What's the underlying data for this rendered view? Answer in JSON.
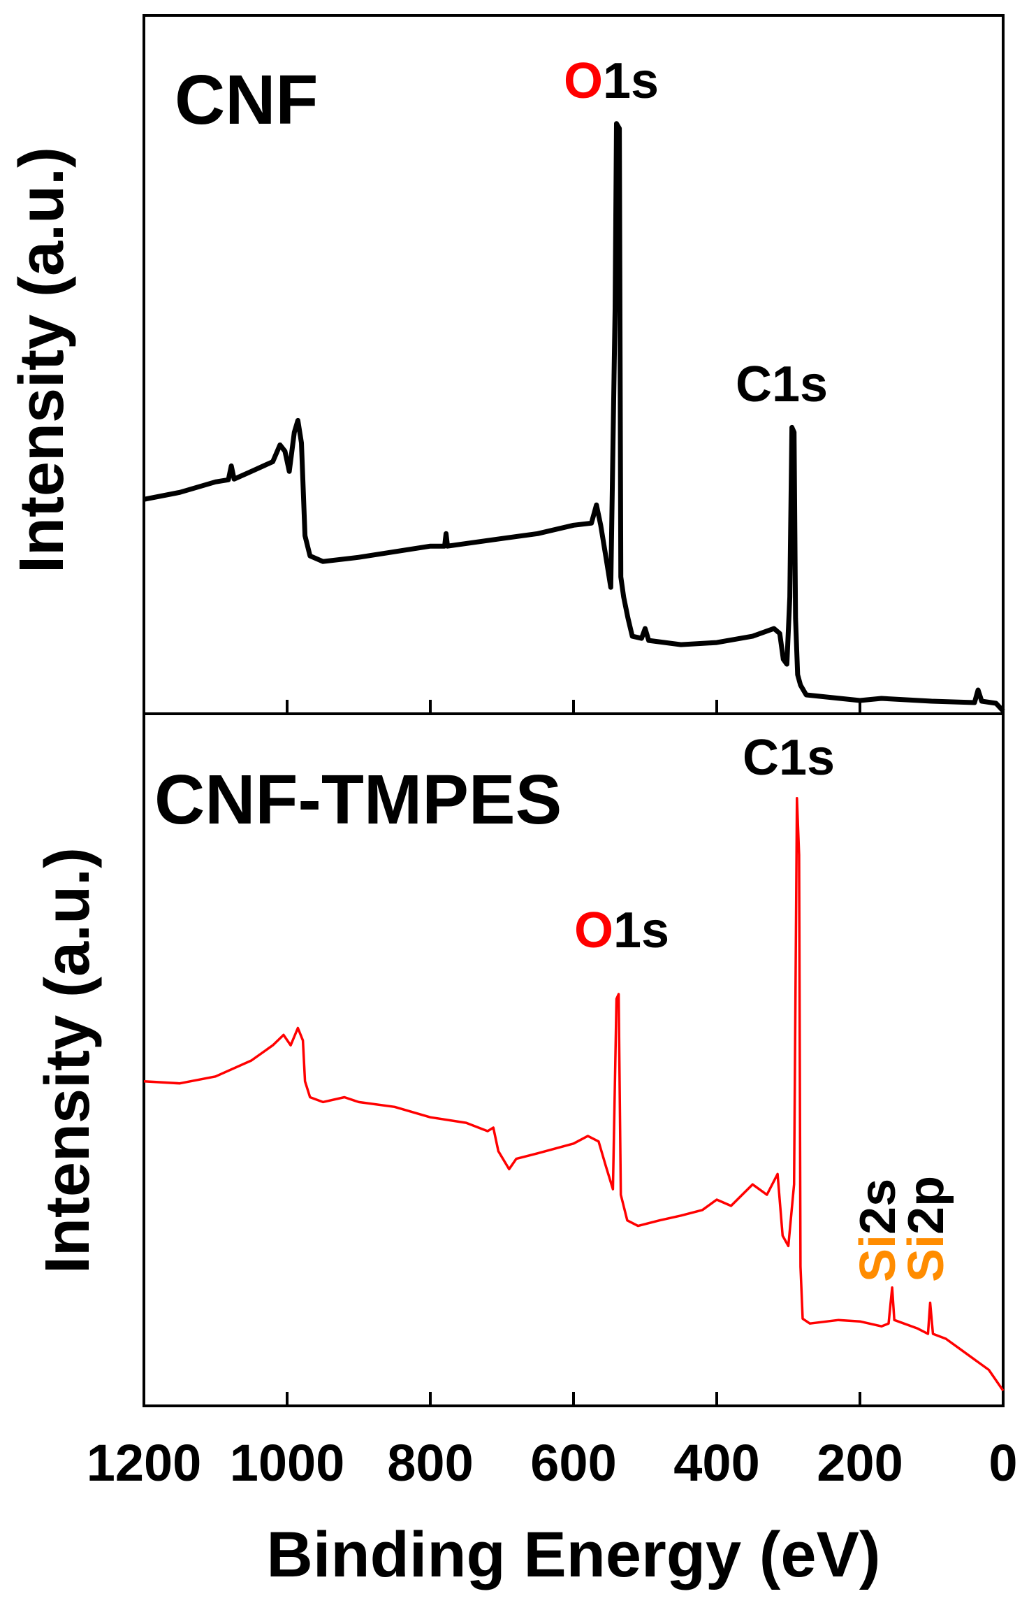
{
  "chart_data": [
    {
      "type": "line",
      "title": "CNF",
      "ylabel": "Intensity (a.u.)",
      "color": "#000000",
      "xlim": [
        1200,
        0
      ],
      "ylim": [
        0,
        100
      ],
      "xticks": [
        1200,
        1000,
        800,
        600,
        400,
        200,
        0
      ],
      "x": [
        1200,
        1150,
        1100,
        1082,
        1078,
        1074,
        1050,
        1020,
        1010,
        1003,
        997,
        990,
        985,
        980,
        975,
        968,
        950,
        900,
        850,
        800,
        780,
        778,
        776,
        700,
        650,
        600,
        575,
        568,
        562,
        555,
        548,
        542,
        540,
        536,
        534,
        530,
        524,
        518,
        505,
        500,
        495,
        450,
        400,
        350,
        320,
        312,
        307,
        302,
        298,
        295,
        292,
        290,
        287,
        283,
        275,
        200,
        170,
        100,
        40,
        35,
        30,
        10,
        0
      ],
      "values": [
        30.7,
        31.7,
        33.2,
        33.5,
        35.5,
        33.6,
        34.7,
        36.1,
        38.5,
        37.6,
        34.7,
        40.3,
        42.0,
        38.8,
        25.5,
        22.6,
        21.8,
        22.4,
        23.2,
        24.0,
        24.0,
        25.8,
        24.0,
        25.1,
        25.8,
        27.0,
        27.3,
        29.9,
        27.0,
        22.6,
        18.1,
        58.0,
        84.5,
        83.8,
        19.6,
        16.7,
        13.7,
        11.1,
        10.8,
        12.2,
        10.5,
        9.9,
        10.2,
        11.1,
        12.2,
        11.5,
        7.8,
        7.1,
        16.7,
        41.0,
        40.3,
        13.7,
        5.6,
        4.1,
        2.7,
        1.9,
        2.2,
        1.8,
        1.6,
        3.4,
        1.8,
        1.5,
        0.4
      ],
      "annotations": [
        {
          "parts": [
            "O",
            "1s"
          ],
          "colors": [
            "#ff0000",
            "#000000"
          ]
        },
        {
          "parts": [
            "C1s"
          ],
          "colors": [
            "#000000"
          ]
        }
      ]
    },
    {
      "type": "line",
      "title": "CNF-TMPES",
      "ylabel": "Intensity (a.u.)",
      "xlabel": "Binding Energy (eV)",
      "color": "#ff0000",
      "xlim": [
        1200,
        0
      ],
      "ylim": [
        0,
        100
      ],
      "xticks": [
        1200,
        1000,
        800,
        600,
        400,
        200,
        0
      ],
      "x": [
        1200,
        1150,
        1100,
        1050,
        1020,
        1005,
        995,
        985,
        978,
        975,
        968,
        950,
        920,
        900,
        850,
        800,
        750,
        720,
        712,
        705,
        690,
        680,
        650,
        600,
        580,
        565,
        555,
        545,
        540,
        537,
        534,
        525,
        510,
        480,
        450,
        420,
        400,
        380,
        350,
        330,
        315,
        308,
        300,
        292,
        288,
        285,
        283,
        280,
        270,
        230,
        200,
        170,
        160,
        155,
        152,
        120,
        105,
        102,
        98,
        80,
        60,
        40,
        20,
        0
      ],
      "values": [
        46.9,
        46.6,
        47.6,
        49.9,
        52.1,
        53.6,
        52.1,
        54.6,
        52.8,
        46.9,
        44.6,
        43.9,
        44.6,
        43.9,
        43.2,
        41.7,
        40.9,
        39.7,
        40.2,
        36.8,
        34.2,
        35.7,
        36.5,
        37.9,
        39.0,
        38.2,
        34.7,
        31.3,
        58.8,
        59.5,
        30.5,
        26.8,
        26.0,
        26.8,
        27.5,
        28.3,
        29.8,
        28.9,
        32.0,
        30.5,
        33.5,
        24.6,
        23.1,
        32.0,
        87.8,
        79.6,
        20.1,
        12.6,
        11.9,
        12.4,
        12.2,
        11.5,
        11.9,
        17.1,
        12.4,
        11.2,
        10.4,
        14.9,
        10.4,
        9.7,
        8.2,
        6.7,
        5.2,
        2.2
      ],
      "annotations": [
        {
          "parts": [
            "C1s"
          ],
          "colors": [
            "#000000"
          ]
        },
        {
          "parts": [
            "O",
            "1s"
          ],
          "colors": [
            "#ff0000",
            "#000000"
          ]
        },
        {
          "parts": [
            "Si",
            "2s"
          ],
          "colors": [
            "#ff8c00",
            "#000000"
          ]
        },
        {
          "parts": [
            "Si",
            "2p"
          ],
          "colors": [
            "#ff8c00",
            "#000000"
          ]
        }
      ]
    }
  ]
}
